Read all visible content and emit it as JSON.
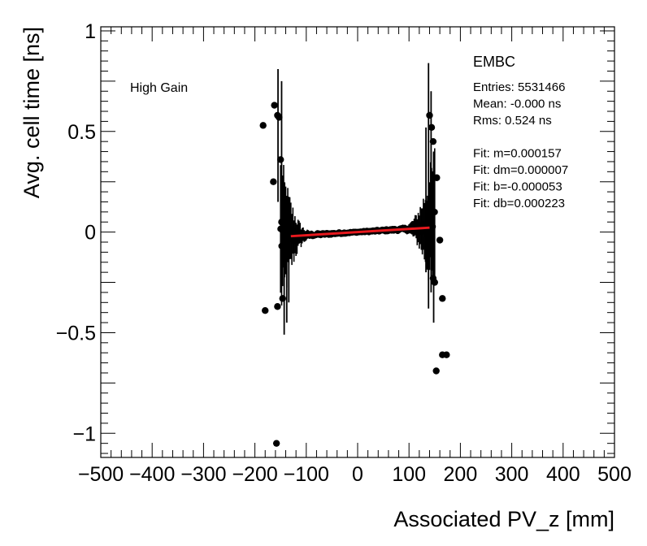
{
  "chart_data": {
    "type": "scatter",
    "xlabel": "Associated PV_z [mm]",
    "ylabel": "Avg. cell time [ns]",
    "xlim": [
      -500,
      500
    ],
    "ylim": [
      -1.12,
      1.02
    ],
    "x_ticks": [
      -500,
      -400,
      -300,
      -200,
      -100,
      0,
      100,
      200,
      300,
      400,
      500
    ],
    "x_tick_labels": [
      "−500",
      "−400",
      "−300",
      "−200",
      "−100",
      "0",
      "100",
      "200",
      "300",
      "400",
      "500"
    ],
    "y_ticks": [
      -1,
      -0.5,
      0,
      0.5,
      1
    ],
    "y_tick_labels": [
      "−1",
      "−0.5",
      "0",
      "0.5",
      "1"
    ],
    "annotation_left": "High Gain",
    "stats_title": "EMBC",
    "stats": [
      "Entries: 5531466",
      "Mean: -0.000 ns",
      "Rms: 0.524 ns",
      "",
      "Fit: m=0.000157",
      "Fit: dm=0.000007",
      "Fit: b=-0.000053",
      "Fit: db=0.000223"
    ],
    "fit": {
      "m": 0.000157,
      "b": -5.3e-05,
      "x_range": [
        -130,
        140
      ],
      "color": "#e8191e"
    },
    "marker_color": "#000000",
    "outliers": [
      {
        "x": -184,
        "y": 0.53
      },
      {
        "x": -180,
        "y": -0.39
      },
      {
        "x": -162,
        "y": 0.63
      },
      {
        "x": -164,
        "y": 0.25
      },
      {
        "x": -156,
        "y": 0.58
      },
      {
        "x": -153,
        "y": 0.57
      },
      {
        "x": -158,
        "y": -1.05
      },
      {
        "x": -156,
        "y": -0.37
      },
      {
        "x": -150,
        "y": 0.36
      },
      {
        "x": -146,
        "y": -0.33
      },
      {
        "x": -148,
        "y": 0.05
      },
      {
        "x": 140,
        "y": 0.58
      },
      {
        "x": 144,
        "y": 0.52
      },
      {
        "x": 147,
        "y": 0.45
      },
      {
        "x": 150,
        "y": -0.25
      },
      {
        "x": 154,
        "y": 0.27
      },
      {
        "x": 160,
        "y": -0.04
      },
      {
        "x": 165,
        "y": -0.33
      },
      {
        "x": 153,
        "y": -0.69
      },
      {
        "x": 165,
        "y": -0.61
      },
      {
        "x": 173,
        "y": -0.61
      },
      {
        "x": 147,
        "y": -0.23
      }
    ],
    "error_bars": [
      {
        "x": -155,
        "lo": 0.15,
        "hi": 0.81
      },
      {
        "x": -148,
        "lo": 0.05,
        "hi": 0.75
      },
      {
        "x": -143,
        "lo": -0.51,
        "hi": 0.2
      },
      {
        "x": -138,
        "lo": -0.45,
        "hi": 0.18
      },
      {
        "x": -134,
        "lo": -0.35,
        "hi": 0.15
      },
      {
        "x": 133,
        "lo": -0.2,
        "hi": 0.52
      },
      {
        "x": 138,
        "lo": -0.38,
        "hi": 0.84
      },
      {
        "x": 143,
        "lo": -0.3,
        "hi": 0.7
      },
      {
        "x": 148,
        "lo": -0.45,
        "hi": 0.4
      }
    ]
  }
}
